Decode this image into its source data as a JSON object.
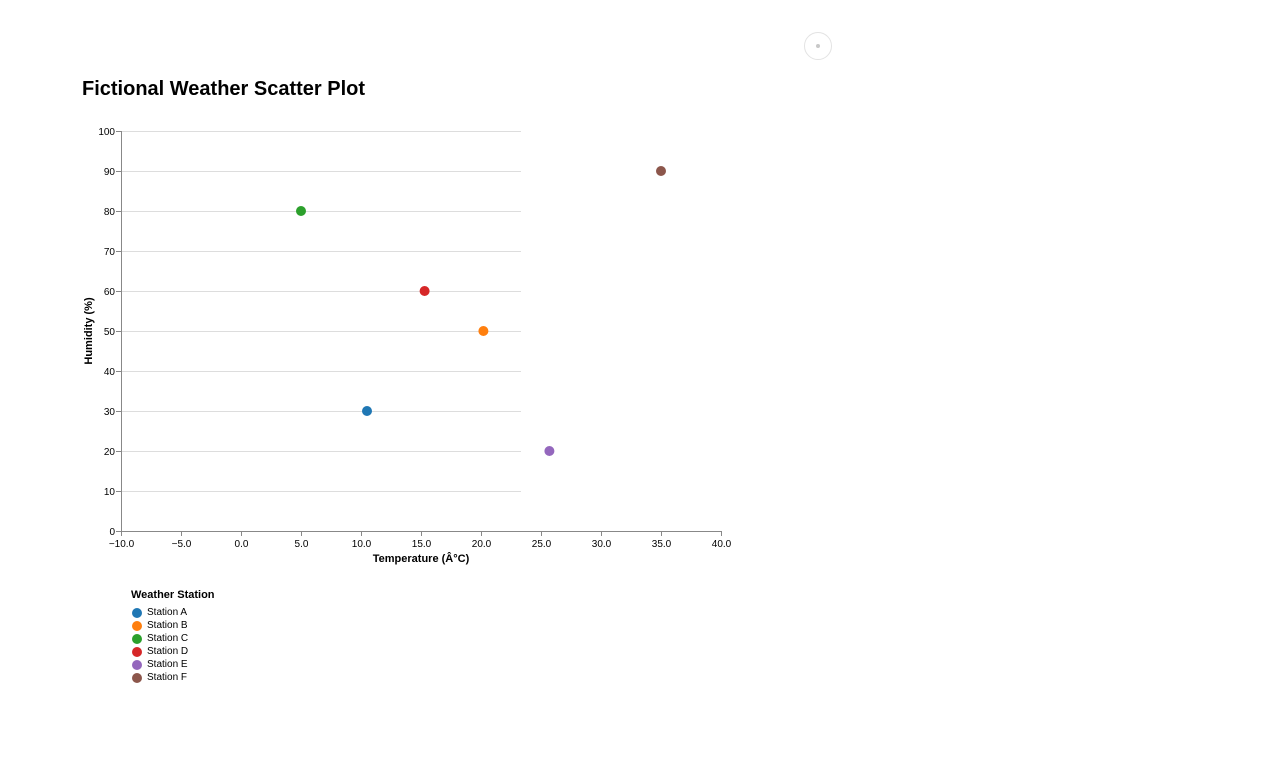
{
  "chart_data": {
    "type": "scatter",
    "title": "Fictional Weather Scatter Plot",
    "xlabel": "Temperature (Â°C)",
    "ylabel": "Humidity (%)",
    "xlim": [
      -10,
      40
    ],
    "ylim": [
      0,
      100
    ],
    "x_ticks": [
      "−10.0",
      "−5.0",
      "0.0",
      "5.0",
      "10.0",
      "15.0",
      "20.0",
      "25.0",
      "30.0",
      "35.0",
      "40.0"
    ],
    "y_ticks": [
      "0",
      "10",
      "20",
      "30",
      "40",
      "50",
      "60",
      "70",
      "80",
      "90",
      "100"
    ],
    "grid": true,
    "legend_title": "Weather Station",
    "legend_position": "bottom-left",
    "series": [
      {
        "name": "Station A",
        "color": "#1f77b4",
        "x": 10.5,
        "y": 30
      },
      {
        "name": "Station B",
        "color": "#ff7f0e",
        "x": 20.2,
        "y": 50
      },
      {
        "name": "Station C",
        "color": "#2ca02c",
        "x": 5.0,
        "y": 80
      },
      {
        "name": "Station D",
        "color": "#d62728",
        "x": 15.3,
        "y": 60
      },
      {
        "name": "Station E",
        "color": "#9467bd",
        "x": 25.7,
        "y": 20
      },
      {
        "name": "Station F",
        "color": "#8c564b",
        "x": 35.0,
        "y": 90
      }
    ]
  },
  "menu_icon": "ellipsis-icon"
}
